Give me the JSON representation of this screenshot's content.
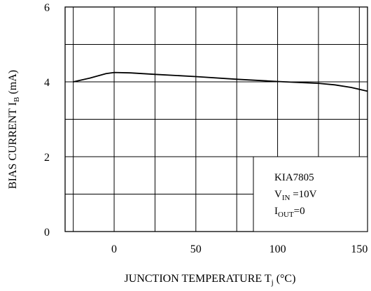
{
  "chart_data": {
    "type": "line",
    "title": "",
    "xlabel": {
      "main": "JUNCTION TEMPERATURE T",
      "sub": "j",
      "unit": " (°C)"
    },
    "ylabel": {
      "main": "BIAS CURRENT I",
      "sub": "B",
      "unit": " (mA)"
    },
    "xlim": [
      -30,
      155
    ],
    "ylim": [
      0,
      6
    ],
    "x_gridlines": [
      -25,
      0,
      25,
      50,
      75,
      100,
      125,
      150
    ],
    "y_gridlines": [
      0,
      1,
      2,
      3,
      4,
      5,
      6
    ],
    "x_ticks": [
      0,
      50,
      100,
      150
    ],
    "x_tick_labels": [
      "0",
      "50",
      "100",
      "150"
    ],
    "y_ticks": [
      0,
      2,
      4,
      6
    ],
    "y_tick_labels": [
      "0",
      "2",
      "4",
      "6"
    ],
    "grid": true,
    "series": [
      {
        "x": [
          -25,
          -15,
          -5,
          0,
          10,
          25,
          50,
          75,
          100,
          115,
          125,
          135,
          145,
          155
        ],
        "y": [
          4.0,
          4.1,
          4.22,
          4.25,
          4.24,
          4.2,
          4.14,
          4.07,
          4.01,
          3.98,
          3.96,
          3.92,
          3.85,
          3.75
        ]
      }
    ],
    "legend": {
      "placement": "bottom-right",
      "device": "KIA7805",
      "vin_main": "V",
      "vin_sub": "IN",
      "vin_value": " =10V",
      "iout_main": "I",
      "iout_sub": "OUT",
      "iout_value": "=0"
    }
  }
}
